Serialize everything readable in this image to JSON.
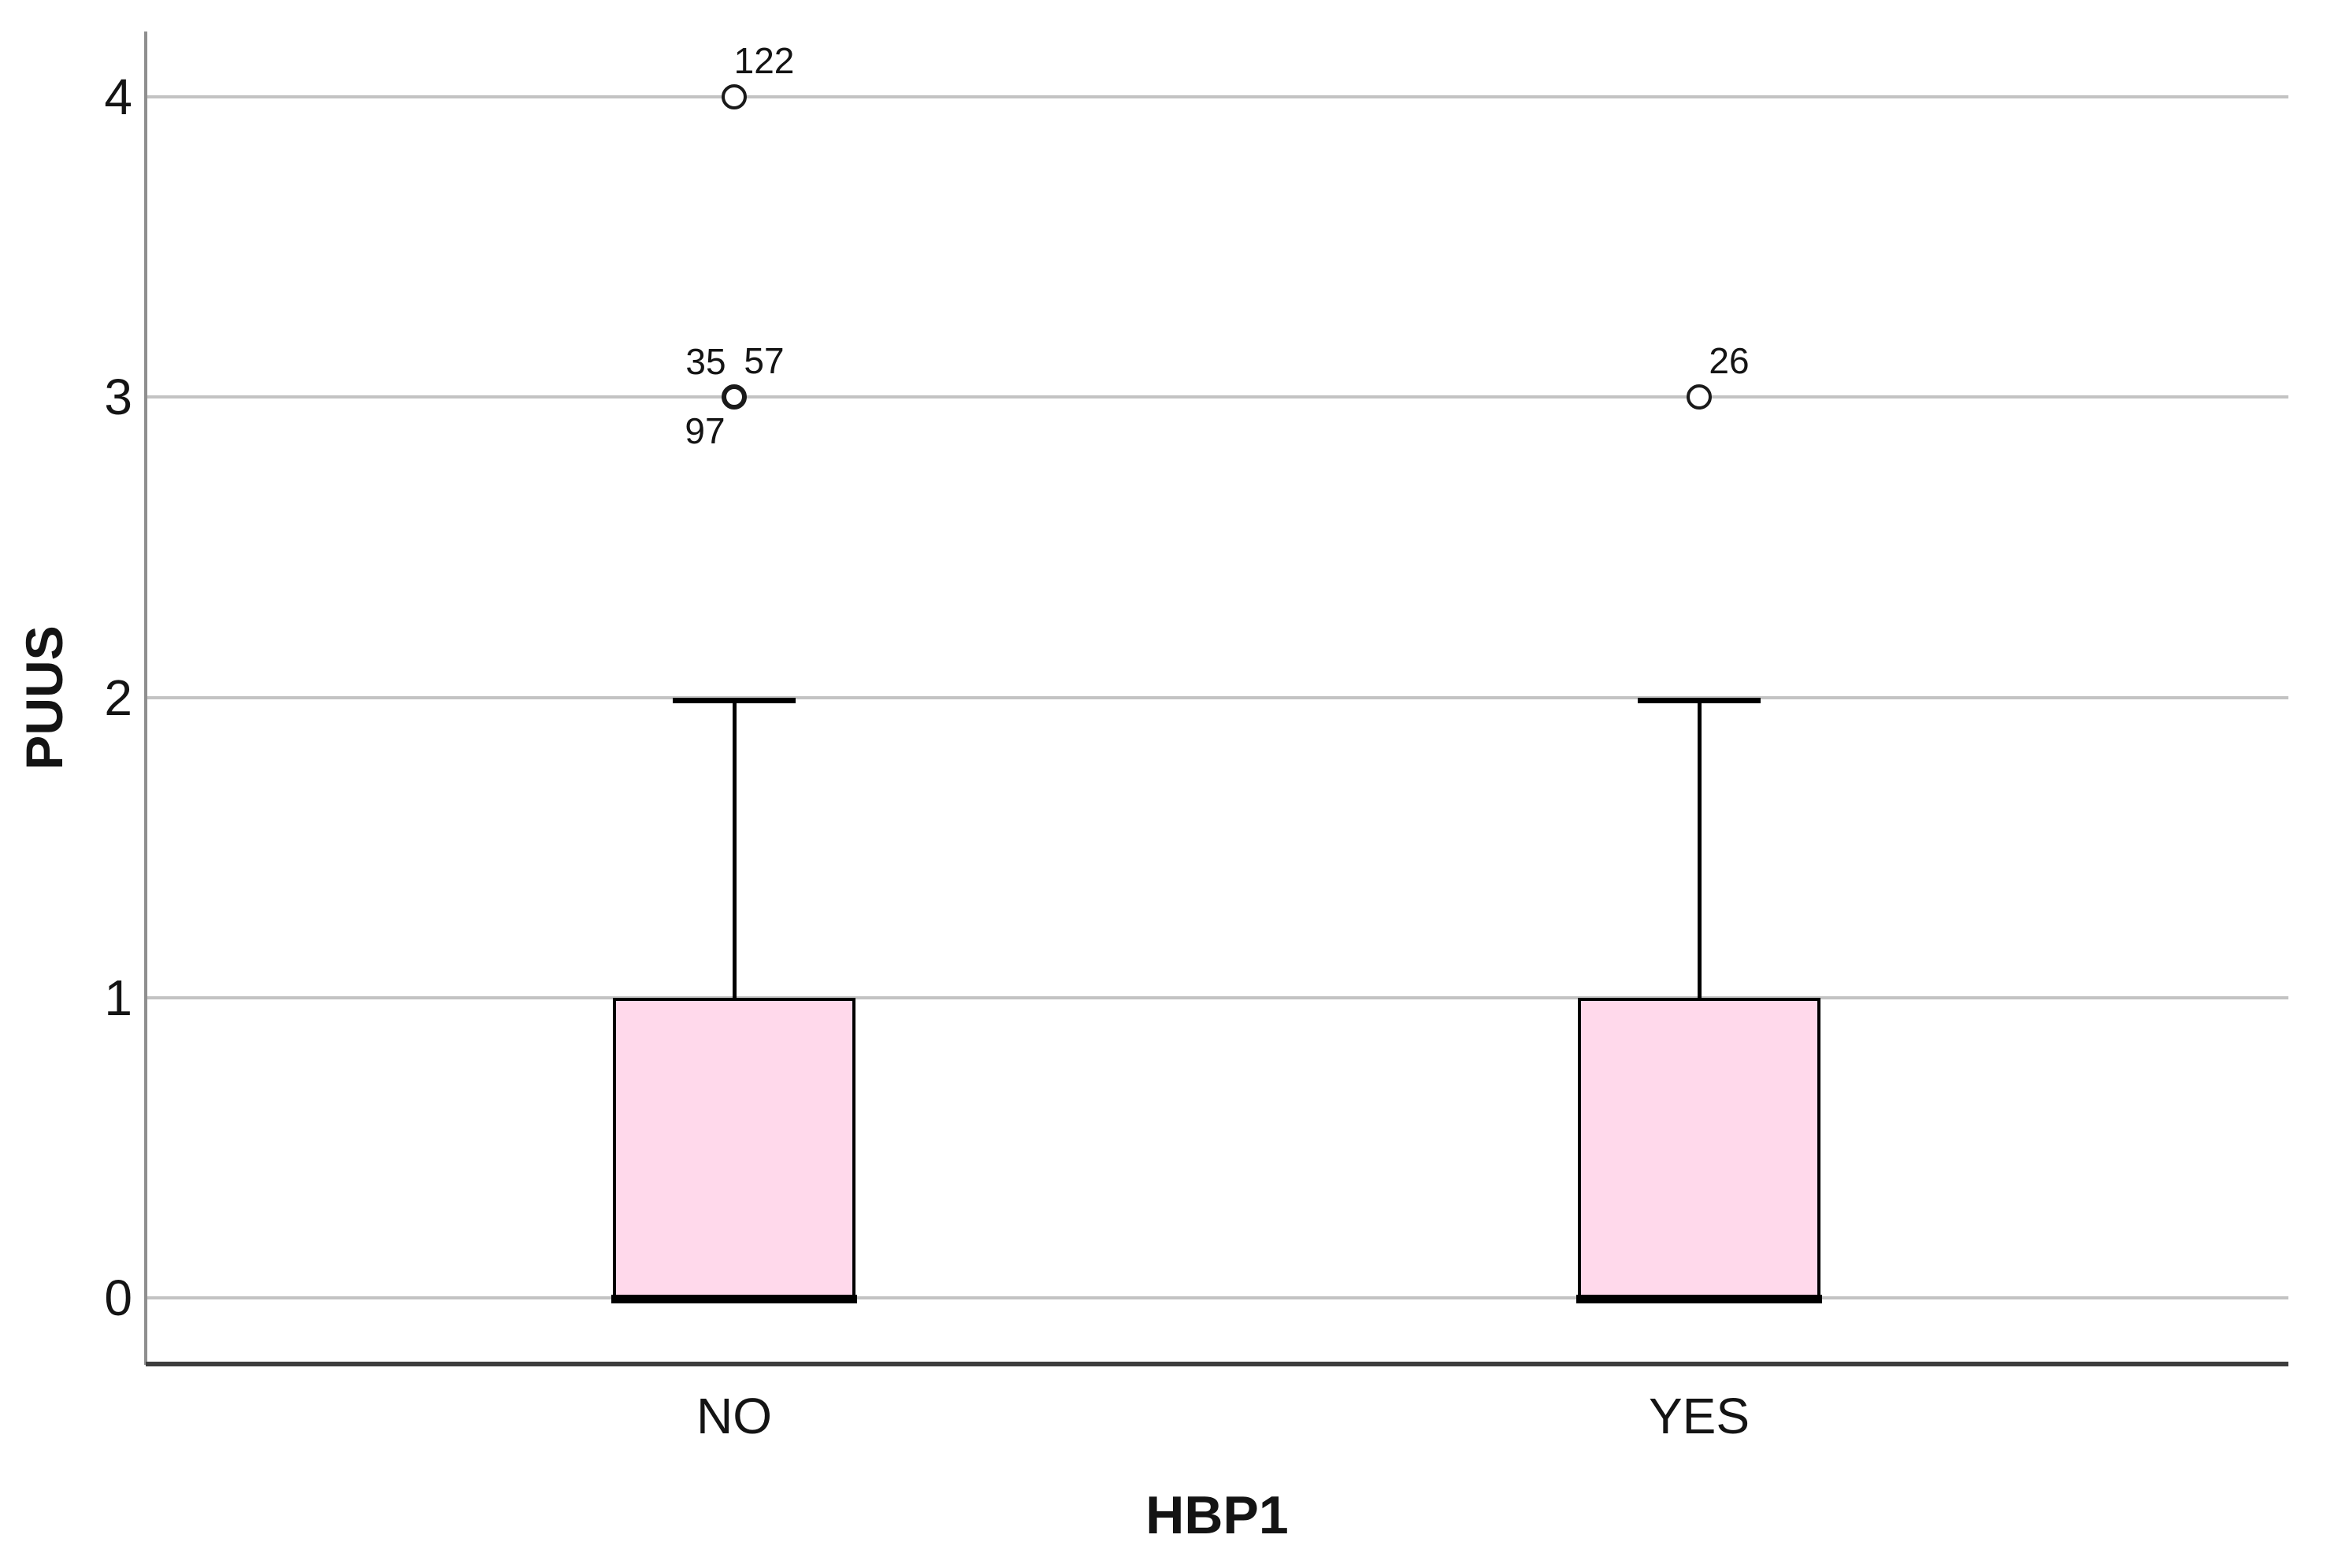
{
  "chart_data": {
    "type": "boxplot",
    "title": "",
    "xlabel": "HBP1",
    "ylabel": "PUUS",
    "categories": [
      "NO",
      "YES"
    ],
    "yticks": [
      0,
      1,
      2,
      3,
      4
    ],
    "ylim": [
      -0.22,
      4.25
    ],
    "grid": "horizontal-only",
    "legend": "none",
    "series": [
      {
        "category": "NO",
        "whisker_low": 0,
        "q1": 0,
        "median": 0,
        "q3": 1,
        "whisker_high": 2,
        "outliers": [
          {
            "value": 3,
            "case_labels": [
              {
                "text": "35",
                "pos": "above-left"
              },
              {
                "text": "57",
                "pos": "above-right"
              },
              {
                "text": "97",
                "pos": "below-left"
              }
            ]
          },
          {
            "value": 4,
            "case_labels": [
              {
                "text": "122",
                "pos": "above-right"
              }
            ]
          }
        ]
      },
      {
        "category": "YES",
        "whisker_low": 0,
        "q1": 0,
        "median": 0,
        "q3": 1,
        "whisker_high": 2,
        "outliers": [
          {
            "value": 3,
            "case_labels": [
              {
                "text": "26",
                "pos": "above-right"
              }
            ]
          }
        ]
      }
    ],
    "colors": {
      "box_fill": "#ffd9eb",
      "box_border": "#000000",
      "median": "#000000",
      "whisker": "#000000",
      "outlier_stroke": "#1a1a1a",
      "outlier_fill": "#ffffff",
      "gridline": "#c3c3c3",
      "y_axis_line": "#8f8f8f",
      "x_axis_line": "#3d3d3d",
      "text": "#141414",
      "background": "#ffffff"
    }
  }
}
